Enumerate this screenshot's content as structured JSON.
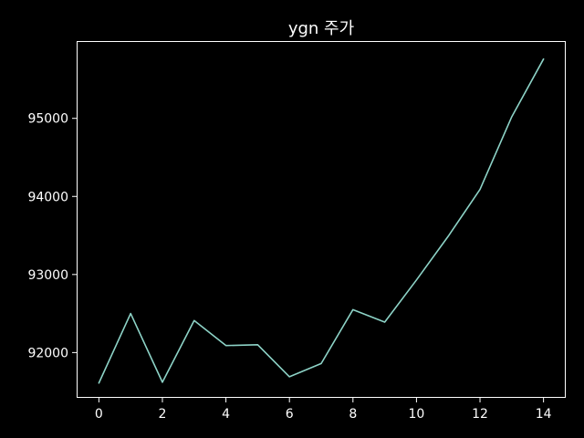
{
  "colors": {
    "background": "#000000",
    "axes": "#ffffff",
    "text": "#ffffff",
    "series": "#8dd3c7"
  },
  "chart_data": {
    "type": "line",
    "title": "ygn 주가",
    "xlabel": "",
    "ylabel": "",
    "grid": false,
    "legend": "none",
    "xlim": [
      -0.7,
      14.7
    ],
    "ylim": [
      91420,
      95990
    ],
    "x_ticks": [
      0,
      2,
      4,
      6,
      8,
      10,
      12,
      14
    ],
    "x_tick_labels": [
      "0",
      "2",
      "4",
      "6",
      "8",
      "10",
      "12",
      "14"
    ],
    "y_ticks": [
      92000,
      93000,
      94000,
      95000
    ],
    "y_tick_labels": [
      "92000",
      "93000",
      "94000",
      "95000"
    ],
    "series": [
      {
        "x": [
          0,
          1,
          2,
          3,
          4,
          5,
          6,
          7,
          8,
          9,
          10,
          11,
          12,
          13,
          14
        ],
        "values": [
          91610,
          92500,
          91620,
          92410,
          92090,
          92100,
          91690,
          91860,
          92550,
          92390,
          92930,
          93490,
          94090,
          95020,
          95760
        ]
      }
    ]
  }
}
